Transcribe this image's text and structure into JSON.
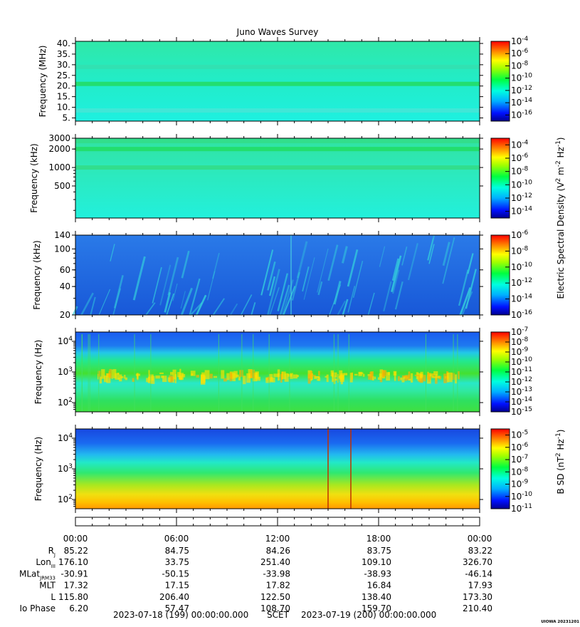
{
  "chart_data": [
    {
      "type": "heatmap",
      "title": "Juno Waves Survey",
      "ylabel": "Frequency (MHz)",
      "yscale": "linear",
      "ylim": [
        3.5,
        41
      ],
      "yticks": [
        5,
        10,
        15,
        20,
        25,
        30,
        35,
        40
      ],
      "ytick_labels": [
        "5.",
        "10.",
        "15.",
        "20.",
        "25.",
        "30.",
        "35.",
        "40."
      ],
      "colorbar": {
        "exponents": [
          "-4",
          "-6",
          "-8",
          "-10",
          "-12",
          "-14",
          "-16"
        ],
        "range_exp": [
          -17,
          -4
        ]
      },
      "features": [
        {
          "kind": "band",
          "at": 21.0,
          "color": "#22dd66"
        },
        {
          "kind": "band",
          "at": 29.0,
          "color": "#33e0b0"
        },
        {
          "kind": "band",
          "at": 8.5,
          "color": "#44e6d6"
        }
      ]
    },
    {
      "type": "heatmap",
      "ylabel": "Frequency (kHz)",
      "yscale": "log",
      "ylim": [
        150,
        3000
      ],
      "yticks": [
        500,
        1000,
        2000,
        3000
      ],
      "ytick_labels": [
        "500",
        "1000",
        "2000",
        "3000"
      ],
      "colorbar": {
        "exponents": [
          "-4",
          "-6",
          "-8",
          "-10",
          "-12",
          "-14"
        ],
        "range_exp": [
          -15,
          -3
        ]
      },
      "features": [
        {
          "kind": "band",
          "at": 2000,
          "color": "#22dd66"
        },
        {
          "kind": "band",
          "at": 1000,
          "color": "#33dd88"
        },
        {
          "kind": "band",
          "at": 2700,
          "color": "#33dd88"
        }
      ]
    },
    {
      "type": "heatmap",
      "ylabel": "Frequency (kHz)",
      "yscale": "log",
      "ylim": [
        20,
        140
      ],
      "yticks": [
        20,
        40,
        60,
        100,
        140
      ],
      "ytick_labels": [
        "20",
        "40",
        "60",
        "100",
        "140"
      ],
      "colorbar": {
        "exponents": [
          "-6",
          "-8",
          "-10",
          "-12",
          "-14",
          "-16"
        ],
        "range_exp": [
          -16,
          -6
        ]
      },
      "features": [
        {
          "kind": "streaks",
          "color": "#33ccdd"
        }
      ]
    },
    {
      "type": "heatmap",
      "ylabel": "Frequency (Hz)",
      "yscale": "log",
      "ylim": [
        50,
        20000
      ],
      "yticks": [
        100,
        1000,
        10000
      ],
      "ytick_labels": [
        "10^2",
        "10^3",
        "10^4"
      ],
      "colorbar": {
        "exponents": [
          "-7",
          "-8",
          "-9",
          "-10",
          "-11",
          "-12",
          "-13",
          "-14",
          "-15"
        ],
        "range_exp": [
          -15,
          -7
        ]
      },
      "features": [
        {
          "kind": "chorus",
          "at": 700,
          "color": "#ffe000"
        }
      ]
    },
    {
      "type": "heatmap",
      "ylabel": "Frequency (Hz)",
      "yscale": "log",
      "ylim": [
        50,
        20000
      ],
      "yticks": [
        100,
        1000,
        10000
      ],
      "ytick_labels": [
        "10^2",
        "10^3",
        "10^4"
      ],
      "colorbar": {
        "exponents": [
          "-5",
          "-6",
          "-7",
          "-8",
          "-9",
          "-10",
          "-11"
        ],
        "range_exp": [
          -11,
          -4.5
        ]
      },
      "features": [
        {
          "kind": "gradient",
          "color": "#ffaa00"
        }
      ]
    }
  ],
  "colorbar_labels": {
    "electric": {
      "prefix": "Electric Spectral Density (V",
      "sup1": "2",
      "mid": " m",
      "sup2": "-2",
      "mid2": " Hz",
      "sup3": "-1",
      "suffix": ")"
    },
    "magnetic": {
      "prefix": "B SD (nT",
      "sup1": "2",
      "mid": " Hz",
      "sup2": "-1",
      "suffix": ")"
    }
  },
  "time_axis": {
    "tick_labels": [
      "00:00",
      "06:00",
      "12:00",
      "18:00",
      "00:00"
    ],
    "ephemeris": [
      {
        "label": "R",
        "sub": "J",
        "values": [
          "85.22",
          "84.75",
          "84.26",
          "83.75",
          "83.22"
        ]
      },
      {
        "label": "Lon",
        "sub": "III",
        "values": [
          "176.10",
          "33.75",
          "251.40",
          "109.10",
          "326.70"
        ]
      },
      {
        "label": "MLat",
        "sub": "JRM33",
        "values": [
          "-30.91",
          "-50.15",
          "-33.98",
          "-38.93",
          "-46.14"
        ]
      },
      {
        "label": "MLT",
        "sub": "",
        "values": [
          "17.32",
          "17.15",
          "17.82",
          "16.84",
          "17.93"
        ]
      },
      {
        "label": "L",
        "sub": "",
        "values": [
          "115.80",
          "206.40",
          "122.50",
          "138.40",
          "173.30"
        ]
      },
      {
        "label": "Io Phase",
        "sub": "",
        "values": [
          "6.20",
          "57.47",
          "108.70",
          "159.70",
          "210.40"
        ]
      }
    ],
    "footer_start": "2023-07-18 (199) 00:00:00.000",
    "footer_mid": "SCET",
    "footer_end": "2023-07-19 (200) 00:00:00.000"
  },
  "credit": "UIOWA 20231201",
  "colors": {
    "panel1_bg": "#22e8c4",
    "panel2_bg": "#2ee6c8",
    "panel3_bg": "#1f6fe0",
    "panel4_top": "#1560e8",
    "panel4_mid": "#22dd55",
    "panel5_top": "#1560e8"
  }
}
